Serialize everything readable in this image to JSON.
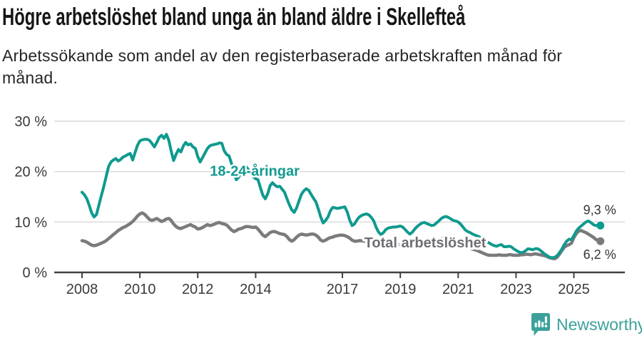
{
  "header": {
    "title": "Högre arbetslöshet bland unga än bland äldre i Skellefteå",
    "subtitle_line1": "Arbetssökande som andel av den registerbaserade arbetskraften månad för",
    "subtitle_line2": "månad."
  },
  "colors": {
    "teal": "#0f9a8e",
    "gray_line": "#7b7b7e",
    "gray_label": "#6f6f73",
    "grid": "#d9d9d9",
    "axis": "#414141",
    "axis_text": "#3b3b3b",
    "value_text": "#333333",
    "brand": "#3ba19a"
  },
  "chart_data": {
    "type": "line",
    "title": "Högre arbetslöshet bland unga än bland äldre i Skellefteå",
    "subtitle": "Arbetssökande som andel av den registerbaserade arbetskraften månad för månad.",
    "grid": true,
    "legend": "inline-labels",
    "unit": "%",
    "x_axis": {
      "range": [
        2008,
        2026
      ],
      "ticks": [
        {
          "label": "2008",
          "year": 2008
        },
        {
          "label": "2010",
          "year": 2010
        },
        {
          "label": "2012",
          "year": 2012
        },
        {
          "label": "2014",
          "year": 2014
        },
        {
          "label": "2017",
          "year": 2017
        },
        {
          "label": "2019",
          "year": 2019
        },
        {
          "label": "2021",
          "year": 2021
        },
        {
          "label": "2023",
          "year": 2023
        },
        {
          "label": "2025",
          "year": 2025
        }
      ]
    },
    "y_axis": {
      "range": [
        0,
        30
      ],
      "tick_values": [
        0,
        10,
        20,
        30
      ],
      "ticks": [
        "0 %",
        "10 %",
        "20 %",
        "30 %"
      ]
    },
    "series": [
      {
        "name": "18-24-åringar",
        "color": "#0f9a8e",
        "label_color": "#0f9a8e",
        "width": 4,
        "start_year": 2008,
        "frequency": "monthly",
        "end_label": "9,3 %",
        "end_value": 9.3,
        "label_pos": {
          "year": 2013.97,
          "pct": 20.2
        },
        "values": [
          15.9,
          15.4,
          14.6,
          13.3,
          11.8,
          11.0,
          11.5,
          13.4,
          15.2,
          17.0,
          19.0,
          21.0,
          21.9,
          22.3,
          22.6,
          22.1,
          22.4,
          22.9,
          23.1,
          23.4,
          23.6,
          22.3,
          23.8,
          25.2,
          26.1,
          26.3,
          26.4,
          26.4,
          26.2,
          25.6,
          24.9,
          25.8,
          26.8,
          27.2,
          26.6,
          27.4,
          26.2,
          24.0,
          22.2,
          23.4,
          24.4,
          23.9,
          25.1,
          25.8,
          25.3,
          25.5,
          24.9,
          24.6,
          23.0,
          21.9,
          22.8,
          23.7,
          24.6,
          25.1,
          25.3,
          25.4,
          25.5,
          25.7,
          25.6,
          24.1,
          23.4,
          23.1,
          21.6,
          20.0,
          18.4,
          18.9,
          20.2,
          21.2,
          21.0,
          20.4,
          19.7,
          19.0,
          18.6,
          18.4,
          16.8,
          15.3,
          14.6,
          15.6,
          17.2,
          17.8,
          17.3,
          17.0,
          17.1,
          16.5,
          15.9,
          14.6,
          13.4,
          12.4,
          11.9,
          12.8,
          14.2,
          15.5,
          16.2,
          16.6,
          16.3,
          15.5,
          14.7,
          14.0,
          12.6,
          11.0,
          9.8,
          10.3,
          11.0,
          12.2,
          12.9,
          12.8,
          12.7,
          12.8,
          12.9,
          13.0,
          12.0,
          10.4,
          9.3,
          9.6,
          10.4,
          11.0,
          11.3,
          11.5,
          11.6,
          11.4,
          10.9,
          10.2,
          8.9,
          8.0,
          7.5,
          7.9,
          8.5,
          8.8,
          8.9,
          9.0,
          9.0,
          9.1,
          9.2,
          9.0,
          8.5,
          8.0,
          7.6,
          8.0,
          8.6,
          9.1,
          9.5,
          9.8,
          9.9,
          9.7,
          9.5,
          9.3,
          9.4,
          9.8,
          10.2,
          10.7,
          11.0,
          11.1,
          10.9,
          10.6,
          10.3,
          10.2,
          10.0,
          9.6,
          9.0,
          8.4,
          8.1,
          7.9,
          7.6,
          7.4,
          7.2,
          7.0,
          6.7,
          6.4,
          6.1,
          5.8,
          5.5,
          5.3,
          5.2,
          5.4,
          5.5,
          5.1,
          5.1,
          5.2,
          5.1,
          4.7,
          4.4,
          4.1,
          3.9,
          4.0,
          4.3,
          4.7,
          4.6,
          4.5,
          4.7,
          4.7,
          4.4,
          4.0,
          3.6,
          3.3,
          3.0,
          2.9,
          3.0,
          3.3,
          3.9,
          4.6,
          5.5,
          6.2,
          6.6,
          6.5,
          7.3,
          8.2,
          8.8,
          9.2,
          9.6,
          10.0,
          10.2,
          9.9,
          9.5,
          9.3,
          9.3,
          9.3
        ]
      },
      {
        "name": "Total arbetslöshet",
        "color": "#7b7b7e",
        "label_color": "#6f6f73",
        "width": 4.5,
        "start_year": 2008,
        "frequency": "monthly",
        "end_label": "6,2 %",
        "end_value": 6.2,
        "label_pos": {
          "year": 2019.86,
          "pct": 5.95
        },
        "values": [
          6.3,
          6.2,
          6.0,
          5.7,
          5.4,
          5.3,
          5.4,
          5.6,
          5.8,
          6.0,
          6.3,
          6.7,
          7.1,
          7.5,
          7.9,
          8.3,
          8.6,
          8.9,
          9.1,
          9.4,
          9.7,
          10.1,
          10.6,
          11.2,
          11.6,
          11.8,
          11.5,
          11.0,
          10.5,
          10.3,
          10.5,
          10.7,
          10.4,
          10.1,
          10.3,
          10.6,
          10.7,
          10.3,
          9.6,
          9.1,
          8.8,
          8.7,
          8.9,
          9.1,
          9.3,
          9.5,
          9.2,
          9.0,
          8.6,
          8.7,
          8.9,
          9.2,
          9.5,
          9.3,
          9.4,
          9.6,
          9.8,
          9.9,
          9.7,
          9.6,
          9.4,
          8.9,
          8.4,
          8.1,
          8.3,
          8.6,
          8.7,
          8.9,
          9.1,
          9.1,
          9.0,
          8.9,
          9.0,
          8.6,
          8.0,
          7.4,
          7.1,
          7.5,
          7.9,
          8.1,
          8.1,
          7.9,
          7.7,
          7.6,
          7.5,
          7.1,
          6.5,
          6.2,
          6.5,
          7.0,
          7.4,
          7.6,
          7.5,
          7.4,
          7.5,
          7.6,
          7.6,
          7.4,
          7.0,
          6.4,
          6.2,
          6.4,
          6.7,
          6.9,
          7.0,
          7.2,
          7.3,
          7.4,
          7.4,
          7.3,
          7.1,
          6.8,
          6.4,
          6.2,
          6.2,
          6.3,
          6.3,
          6.2,
          6.1,
          6.0,
          5.9,
          5.8,
          5.6,
          5.5,
          5.4,
          5.5,
          5.6,
          5.7,
          5.7,
          5.6,
          5.6,
          5.5,
          5.5,
          5.4,
          5.3,
          5.2,
          5.2,
          5.3,
          5.4,
          5.5,
          5.5,
          5.6,
          5.6,
          5.7,
          5.8,
          5.9,
          6.1,
          6.4,
          6.6,
          6.7,
          6.8,
          6.7,
          6.6,
          6.4,
          6.2,
          6.0,
          5.8,
          5.6,
          5.4,
          5.2,
          5.0,
          4.8,
          4.6,
          4.5,
          4.3,
          4.1,
          3.9,
          3.7,
          3.5,
          3.4,
          3.4,
          3.4,
          3.4,
          3.5,
          3.4,
          3.4,
          3.4,
          3.5,
          3.5,
          3.4,
          3.4,
          3.4,
          3.5,
          3.5,
          3.6,
          3.6,
          3.5,
          3.6,
          3.7,
          3.6,
          3.5,
          3.4,
          3.3,
          3.1,
          2.9,
          2.8,
          2.7,
          3.0,
          3.6,
          4.3,
          5.0,
          5.3,
          5.5,
          5.8,
          6.9,
          7.7,
          8.2,
          8.3,
          8.1,
          7.9,
          7.6,
          7.3,
          7.0,
          6.6,
          6.3,
          6.2
        ]
      }
    ]
  },
  "footer": {
    "brand": "Newsworthy"
  }
}
